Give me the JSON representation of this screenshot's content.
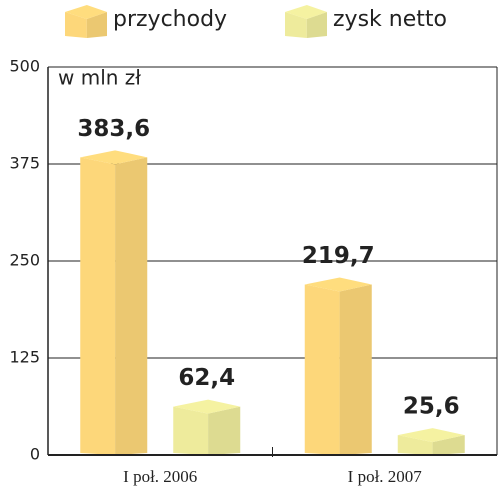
{
  "chart_data": {
    "type": "bar",
    "unit_label": "w mln zł",
    "categories": [
      "I poł. 2006",
      "I poł. 2007"
    ],
    "series": [
      {
        "name": "przychody",
        "color": "#fdd77a",
        "values": [
          383.6,
          219.7
        ],
        "value_labels": [
          "383,6",
          "219,7"
        ]
      },
      {
        "name": "zysk netto",
        "color": "#eeeb9c",
        "values": [
          62.4,
          25.6
        ],
        "value_labels": [
          "62,4",
          "25,6"
        ]
      }
    ],
    "ylim": [
      0,
      500
    ],
    "yticks": [
      0,
      125,
      250,
      375,
      500
    ],
    "grid": true
  }
}
